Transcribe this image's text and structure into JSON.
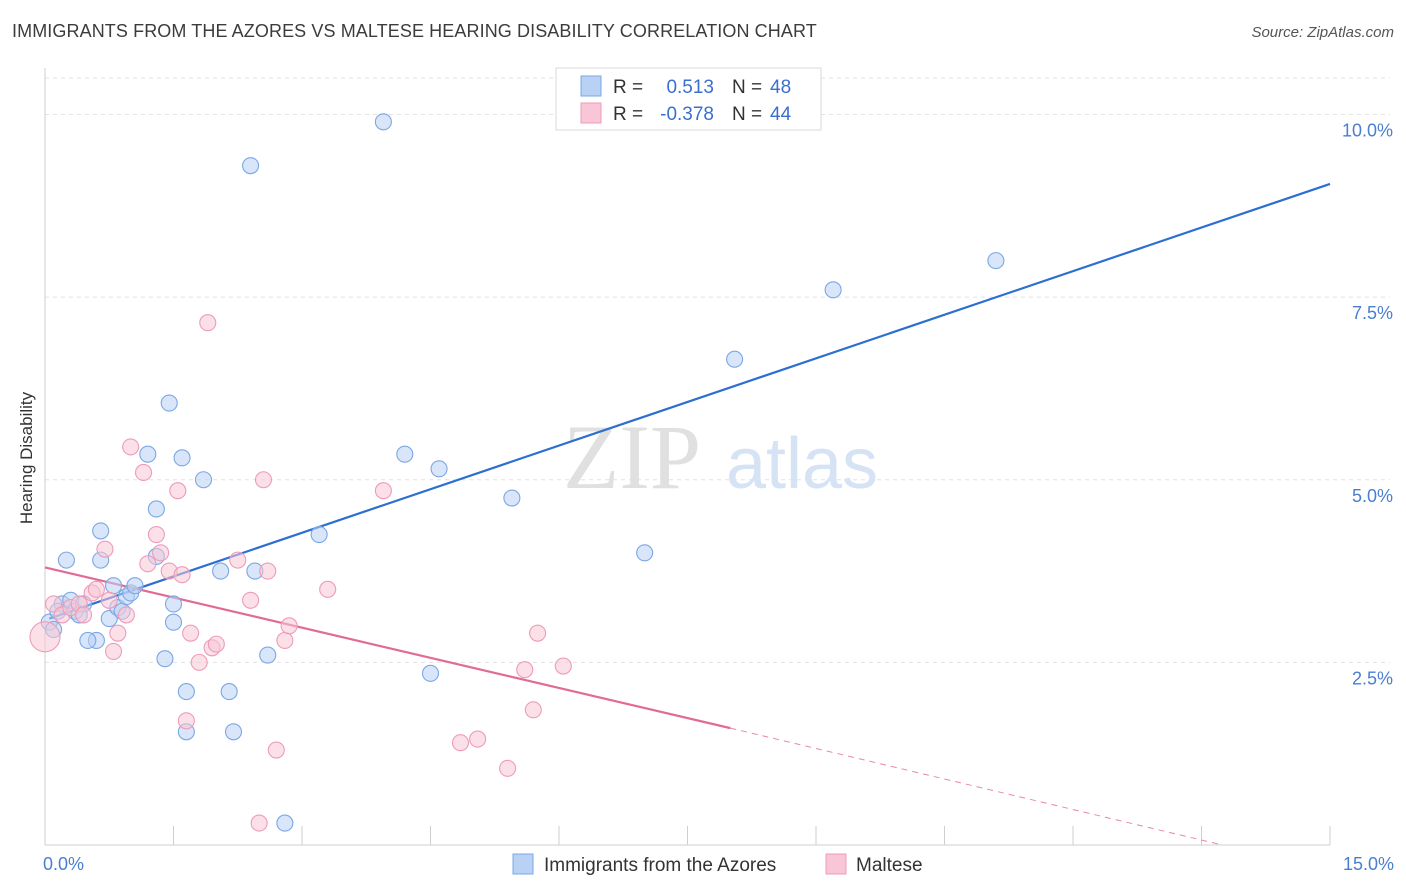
{
  "title": "IMMIGRANTS FROM THE AZORES VS MALTESE HEARING DISABILITY CORRELATION CHART",
  "source": "Source: ZipAtlas.com",
  "watermark": {
    "zip": "ZIP",
    "atlas": "atlas"
  },
  "chart_data": {
    "type": "scatter",
    "xlabel": "",
    "ylabel": "Hearing Disability",
    "xlim": [
      0,
      15
    ],
    "ylim": [
      0,
      10.5
    ],
    "x_tick_labels": [
      {
        "value": 0,
        "label": "0.0%"
      },
      {
        "value": 15,
        "label": "15.0%"
      }
    ],
    "x_minor_ticks": [
      1.5,
      3,
      4.5,
      6,
      7.5,
      9,
      10.5,
      12,
      13.5,
      15
    ],
    "y_ticks": [
      {
        "value": 2.5,
        "label": "2.5%"
      },
      {
        "value": 5.0,
        "label": "5.0%"
      },
      {
        "value": 7.5,
        "label": "7.5%"
      },
      {
        "value": 10.0,
        "label": "10.0%"
      }
    ],
    "grid": true,
    "legend": {
      "position": "top-center",
      "entries": [
        {
          "r_label": "R =",
          "r_value": "0.513",
          "n_label": "N =",
          "n_value": "48"
        },
        {
          "r_label": "R =",
          "r_value": "-0.378",
          "n_label": "N =",
          "n_value": "44"
        }
      ]
    },
    "series": [
      {
        "name": "Immigrants from the Azores",
        "color": "#7aa7e6",
        "fill": "#b9d1f4",
        "line_color": "#2c6fd1",
        "trend": {
          "x0": 0.05,
          "y0": 3.1,
          "x1": 15.0,
          "y1": 9.05
        },
        "points": [
          [
            0.05,
            3.05
          ],
          [
            0.1,
            2.95
          ],
          [
            0.2,
            3.3
          ],
          [
            0.25,
            3.9
          ],
          [
            0.3,
            3.35
          ],
          [
            0.35,
            3.2
          ],
          [
            0.45,
            3.3
          ],
          [
            0.6,
            2.8
          ],
          [
            0.65,
            4.3
          ],
          [
            0.65,
            3.9
          ],
          [
            0.5,
            2.8
          ],
          [
            0.75,
            3.1
          ],
          [
            0.8,
            3.55
          ],
          [
            0.85,
            3.25
          ],
          [
            0.9,
            3.2
          ],
          [
            0.95,
            3.4
          ],
          [
            1.0,
            3.45
          ],
          [
            1.05,
            3.55
          ],
          [
            1.2,
            5.35
          ],
          [
            1.3,
            4.6
          ],
          [
            1.3,
            3.95
          ],
          [
            1.4,
            2.55
          ],
          [
            1.45,
            6.05
          ],
          [
            1.5,
            3.3
          ],
          [
            1.5,
            3.05
          ],
          [
            1.6,
            5.3
          ],
          [
            1.65,
            2.1
          ],
          [
            1.65,
            1.55
          ],
          [
            1.85,
            5.0
          ],
          [
            2.05,
            3.75
          ],
          [
            2.15,
            2.1
          ],
          [
            2.2,
            1.55
          ],
          [
            2.4,
            9.3
          ],
          [
            2.45,
            3.75
          ],
          [
            2.6,
            2.6
          ],
          [
            2.8,
            0.3
          ],
          [
            3.2,
            4.25
          ],
          [
            3.95,
            9.9
          ],
          [
            4.2,
            5.35
          ],
          [
            4.5,
            2.35
          ],
          [
            4.6,
            5.15
          ],
          [
            5.45,
            4.75
          ],
          [
            7.0,
            4.0
          ],
          [
            8.05,
            6.65
          ],
          [
            9.2,
            7.6
          ],
          [
            11.1,
            8.0
          ],
          [
            0.15,
            3.2
          ],
          [
            0.4,
            3.15
          ]
        ]
      },
      {
        "name": "Maltese",
        "color": "#ee9bb9",
        "fill": "#f8c6d6",
        "line_color": "#e26b96",
        "trend": {
          "x0": 0.0,
          "y0": 3.8,
          "x1": 8.0,
          "y1": 1.6
        },
        "trend_dashed": {
          "x0": 8.0,
          "y0": 1.6,
          "x1": 15.0,
          "y1": -0.35
        },
        "points": [
          [
            0.0,
            2.85
          ],
          [
            0.1,
            3.3
          ],
          [
            0.2,
            3.15
          ],
          [
            0.3,
            3.25
          ],
          [
            0.4,
            3.3
          ],
          [
            0.45,
            3.15
          ],
          [
            0.55,
            3.45
          ],
          [
            0.6,
            3.5
          ],
          [
            0.7,
            4.05
          ],
          [
            0.75,
            3.35
          ],
          [
            0.8,
            2.65
          ],
          [
            0.85,
            2.9
          ],
          [
            0.95,
            3.15
          ],
          [
            1.0,
            5.45
          ],
          [
            1.15,
            5.1
          ],
          [
            1.2,
            3.85
          ],
          [
            1.3,
            4.25
          ],
          [
            1.35,
            4.0
          ],
          [
            1.45,
            3.75
          ],
          [
            1.55,
            4.85
          ],
          [
            1.6,
            3.7
          ],
          [
            1.65,
            1.7
          ],
          [
            1.7,
            2.9
          ],
          [
            1.8,
            2.5
          ],
          [
            1.9,
            7.15
          ],
          [
            1.95,
            2.7
          ],
          [
            2.0,
            2.75
          ],
          [
            2.25,
            3.9
          ],
          [
            2.4,
            3.35
          ],
          [
            2.5,
            0.3
          ],
          [
            2.55,
            5.0
          ],
          [
            2.6,
            3.75
          ],
          [
            2.7,
            1.3
          ],
          [
            2.8,
            2.8
          ],
          [
            2.85,
            3.0
          ],
          [
            3.3,
            3.5
          ],
          [
            3.95,
            4.85
          ],
          [
            4.85,
            1.4
          ],
          [
            5.05,
            1.45
          ],
          [
            5.4,
            1.05
          ],
          [
            5.6,
            2.4
          ],
          [
            5.7,
            1.85
          ],
          [
            5.75,
            2.9
          ],
          [
            6.05,
            2.45
          ]
        ]
      }
    ]
  },
  "bottom_legend": [
    {
      "label": "Immigrants from the Azores"
    },
    {
      "label": "Maltese"
    }
  ]
}
